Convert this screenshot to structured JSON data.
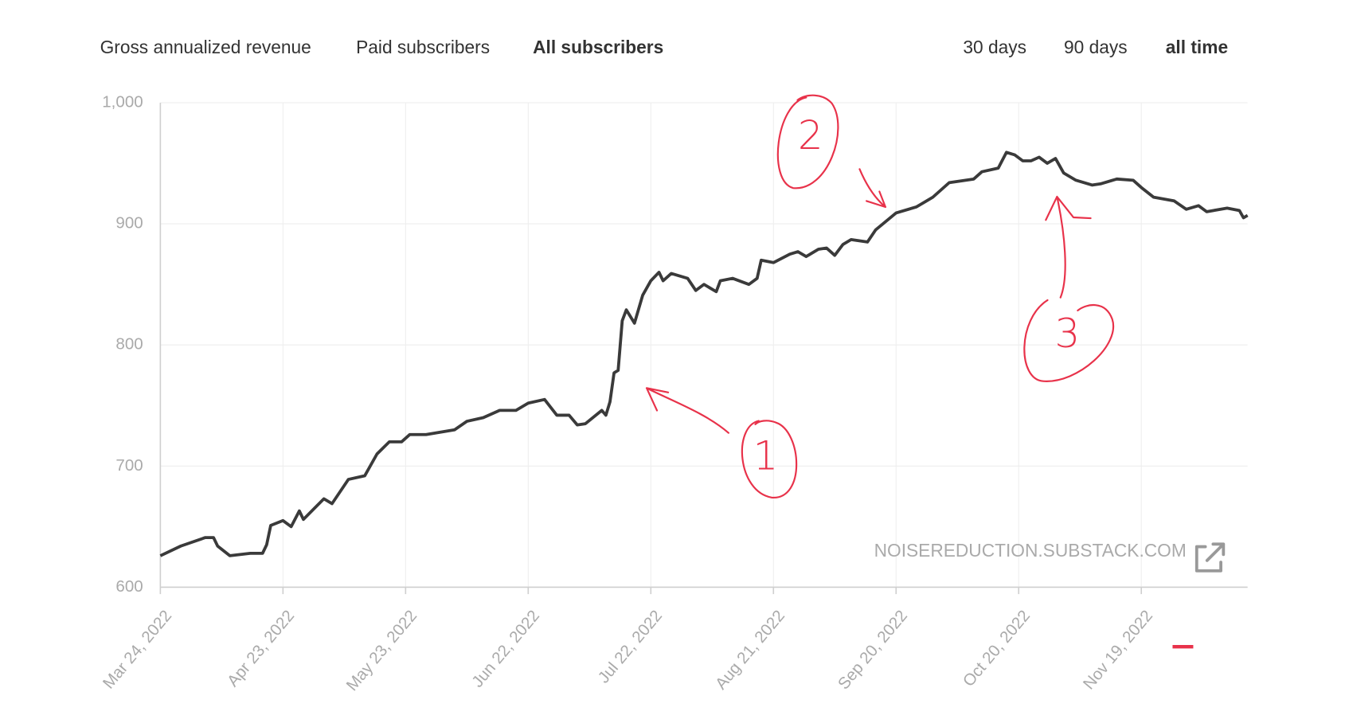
{
  "tabs": {
    "metrics": [
      "Gross annualized revenue",
      "Paid subscribers",
      "All subscribers"
    ],
    "active_metric": 2,
    "ranges": [
      "30 days",
      "90 days",
      "all time"
    ],
    "active_range": 2
  },
  "chart_data": {
    "type": "line",
    "color": "#3a3a3a",
    "grid": true,
    "watermark": "NOISEREDUCTION.SUBSTACK.COM",
    "annotations": [
      "1",
      "2",
      "3"
    ],
    "x": [
      "2022-03-24",
      "2022-03-29",
      "2022-04-04",
      "2022-04-06",
      "2022-04-07",
      "2022-04-10",
      "2022-04-15",
      "2022-04-18",
      "2022-04-19",
      "2022-04-20",
      "2022-04-23",
      "2022-04-25",
      "2022-04-27",
      "2022-04-28",
      "2022-05-03",
      "2022-05-05",
      "2022-05-09",
      "2022-05-13",
      "2022-05-16",
      "2022-05-19",
      "2022-05-22",
      "2022-05-24",
      "2022-05-28",
      "2022-06-04",
      "2022-06-07",
      "2022-06-11",
      "2022-06-15",
      "2022-06-19",
      "2022-06-22",
      "2022-06-26",
      "2022-06-29",
      "2022-07-02",
      "2022-07-04",
      "2022-07-06",
      "2022-07-10",
      "2022-07-11",
      "2022-07-12",
      "2022-07-13",
      "2022-07-14",
      "2022-07-15",
      "2022-07-16",
      "2022-07-18",
      "2022-07-20",
      "2022-07-22",
      "2022-07-24",
      "2022-07-25",
      "2022-07-27",
      "2022-07-31",
      "2022-08-02",
      "2022-08-04",
      "2022-08-07",
      "2022-08-08",
      "2022-08-11",
      "2022-08-15",
      "2022-08-17",
      "2022-08-18",
      "2022-08-21",
      "2022-08-25",
      "2022-08-27",
      "2022-08-29",
      "2022-09-01",
      "2022-09-03",
      "2022-09-05",
      "2022-09-07",
      "2022-09-09",
      "2022-09-13",
      "2022-09-15",
      "2022-09-20",
      "2022-09-25",
      "2022-09-29",
      "2022-10-03",
      "2022-10-09",
      "2022-10-11",
      "2022-10-15",
      "2022-10-17",
      "2022-10-19",
      "2022-10-21",
      "2022-10-23",
      "2022-10-25",
      "2022-10-27",
      "2022-10-29",
      "2022-10-31",
      "2022-11-03",
      "2022-11-07",
      "2022-11-09",
      "2022-11-13",
      "2022-11-17",
      "2022-11-19",
      "2022-11-22",
      "2022-11-27",
      "2022-11-30",
      "2022-12-03",
      "2022-12-05",
      "2022-12-10",
      "2022-12-13",
      "2022-12-14",
      "2022-12-15"
    ],
    "values": [
      626,
      634,
      641,
      641,
      634,
      626,
      628,
      628,
      635,
      651,
      655,
      650,
      663,
      656,
      673,
      669,
      689,
      692,
      710,
      720,
      720,
      726,
      726,
      730,
      737,
      740,
      746,
      746,
      752,
      755,
      742,
      742,
      734,
      735,
      746,
      742,
      753,
      777,
      779,
      820,
      829,
      818,
      841,
      853,
      860,
      853,
      859,
      855,
      845,
      850,
      844,
      853,
      855,
      850,
      855,
      870,
      868,
      875,
      877,
      873,
      879,
      880,
      874,
      883,
      887,
      885,
      895,
      909,
      914,
      922,
      934,
      937,
      943,
      946,
      959,
      957,
      952,
      952,
      955,
      950,
      954,
      942,
      936,
      932,
      933,
      937,
      936,
      930,
      922,
      919,
      912,
      915,
      910,
      913,
      911,
      905,
      907
    ],
    "xlim": [
      "2022-03-24",
      "2022-12-15"
    ],
    "xticks": [
      {
        "value": "2022-03-24",
        "label": "Mar 24, 2022"
      },
      {
        "value": "2022-04-23",
        "label": "Apr 23, 2022"
      },
      {
        "value": "2022-05-23",
        "label": "May 23, 2022"
      },
      {
        "value": "2022-06-22",
        "label": "Jun 22, 2022"
      },
      {
        "value": "2022-07-22",
        "label": "Jul 22, 2022"
      },
      {
        "value": "2022-08-21",
        "label": "Aug 21, 2022"
      },
      {
        "value": "2022-09-20",
        "label": "Sep 20, 2022"
      },
      {
        "value": "2022-10-20",
        "label": "Oct 20, 2022"
      },
      {
        "value": "2022-11-19",
        "label": "Nov 19, 2022"
      }
    ],
    "ylim": [
      600,
      1000
    ],
    "yticks": [
      600,
      700,
      800,
      900,
      {
        "value": 1000,
        "label": "1,000"
      }
    ]
  }
}
